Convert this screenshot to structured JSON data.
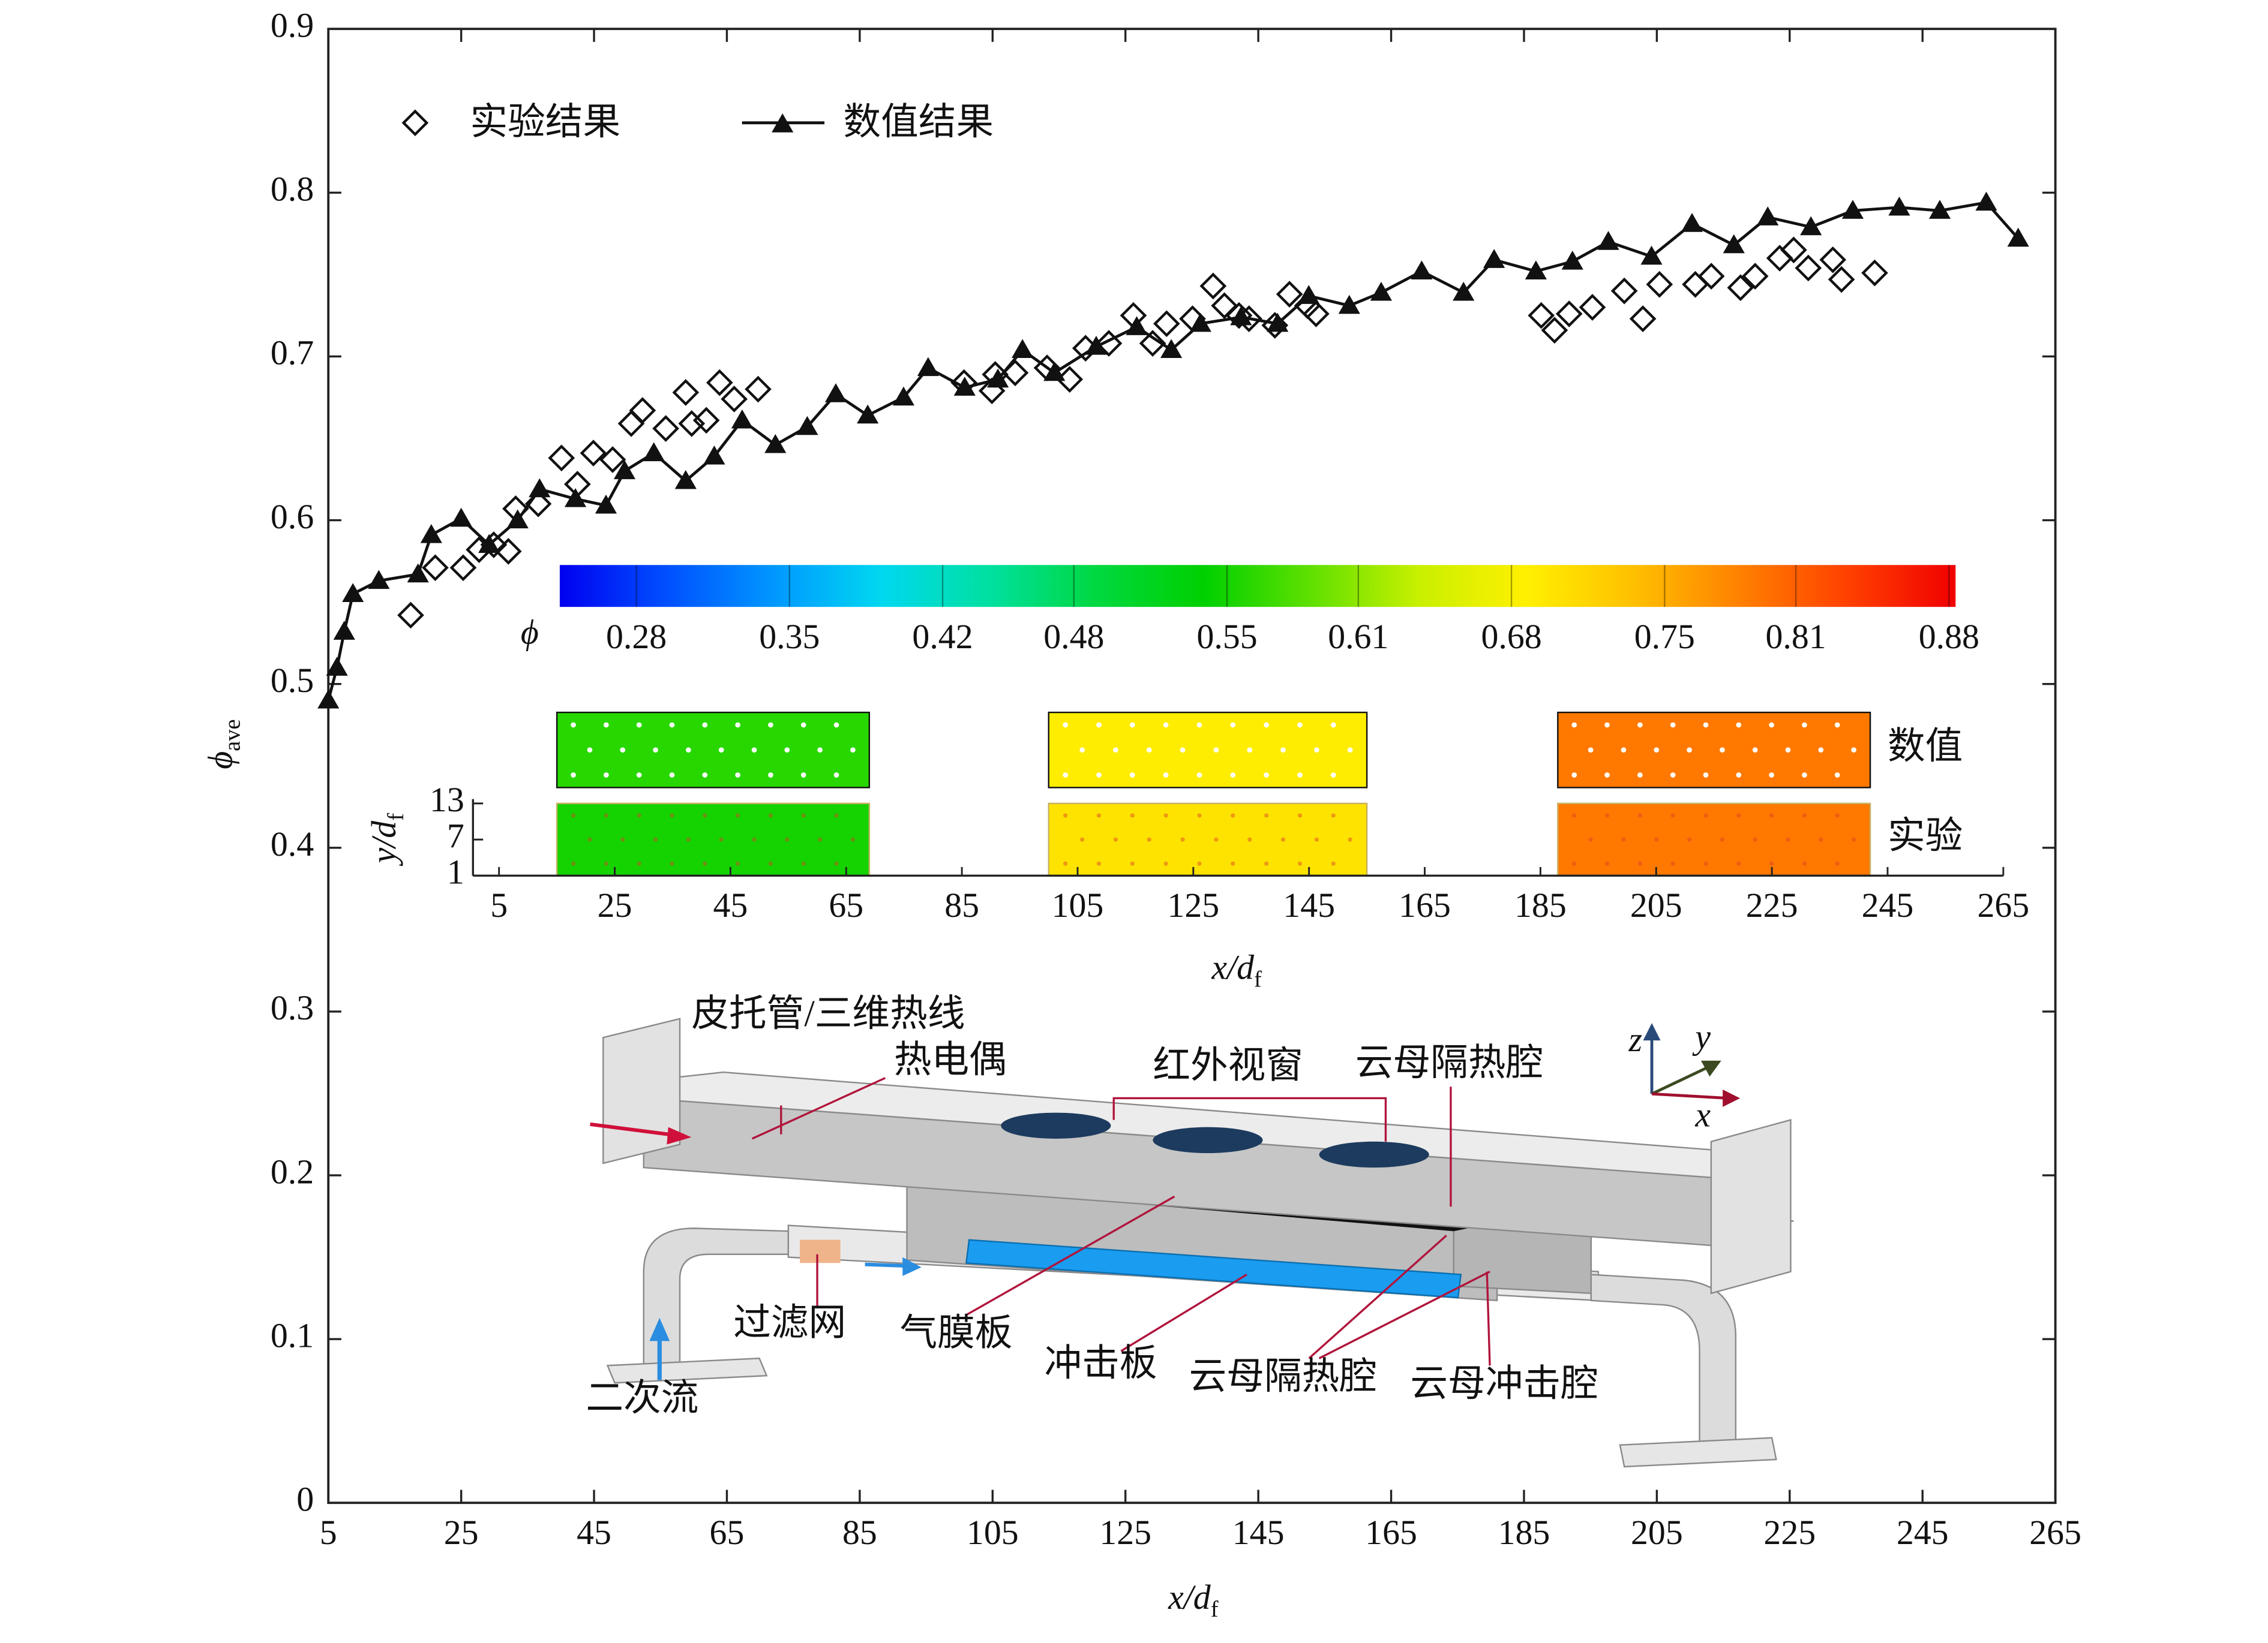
{
  "chart_data": [
    {
      "type": "line",
      "xlabel": {
        "text": "x/d",
        "sub": "f"
      },
      "ylabel": {
        "text": "ϕ",
        "sub": "ave"
      },
      "xlim": [
        5,
        265
      ],
      "ylim": [
        0,
        0.9
      ],
      "xticks": [
        5,
        25,
        45,
        65,
        85,
        105,
        125,
        145,
        165,
        185,
        205,
        225,
        245,
        265
      ],
      "yticks": [
        0,
        0.1,
        0.2,
        0.3,
        0.4,
        0.5,
        0.6,
        0.7,
        0.8,
        0.9
      ],
      "legend": "upper left",
      "series": [
        {
          "name": "实验结果",
          "color": "#111111",
          "marker": "diamond",
          "line": false,
          "x": [
            17.4,
            21.1,
            25.3,
            27.7,
            29.9,
            32.1,
            33.2,
            36.6,
            40.1,
            42.5,
            44.9,
            47.8,
            50.6,
            52.3,
            55.8,
            58.8,
            59.7,
            61.9,
            63.9,
            66.1,
            69.7,
            100.7,
            104.9,
            105.4,
            108.4,
            113.2,
            116.6,
            119.0,
            122.5,
            126.2,
            129.1,
            131.2,
            135.1,
            138.2,
            139.9,
            142.1,
            143.6,
            147.5,
            149.7,
            152.4,
            153.7,
            187.6,
            189.6,
            191.8,
            195.3,
            200.1,
            202.9,
            205.4,
            210.8,
            213.2,
            217.6,
            219.8,
            223.5,
            225.6,
            227.8,
            231.5,
            232.8,
            237.8
          ],
          "values": [
            0.542,
            0.571,
            0.571,
            0.582,
            0.585,
            0.581,
            0.607,
            0.61,
            0.638,
            0.622,
            0.641,
            0.637,
            0.659,
            0.667,
            0.656,
            0.678,
            0.659,
            0.661,
            0.684,
            0.674,
            0.68,
            0.684,
            0.679,
            0.689,
            0.69,
            0.693,
            0.686,
            0.705,
            0.708,
            0.725,
            0.708,
            0.72,
            0.723,
            0.743,
            0.731,
            0.725,
            0.723,
            0.719,
            0.738,
            0.731,
            0.726,
            0.725,
            0.716,
            0.726,
            0.73,
            0.74,
            0.723,
            0.744,
            0.744,
            0.749,
            0.742,
            0.749,
            0.76,
            0.765,
            0.754,
            0.759,
            0.747,
            0.751
          ]
        },
        {
          "name": "数值结果",
          "color": "#111111",
          "marker": "triangle",
          "line": true,
          "x": [
            5,
            6.3,
            7.4,
            8.7,
            12.6,
            18.5,
            20.5,
            25,
            29.2,
            33.5,
            36.8,
            42.2,
            46.8,
            49.6,
            54,
            58.8,
            63.1,
            67.3,
            72.3,
            77.1,
            81.4,
            86.2,
            91.6,
            95.3,
            100.8,
            105.8,
            109.5,
            114.3,
            120.6,
            126.7,
            131.9,
            136.3,
            142.4,
            147.9,
            152.6,
            158.7,
            163.5,
            169.6,
            175.9,
            180.5,
            186.8,
            192.3,
            197.7,
            204.2,
            210.3,
            216.6,
            221.7,
            228.2,
            234.5,
            241.5,
            247.6,
            254.6,
            259.4
          ],
          "values": [
            0.49,
            0.51,
            0.532,
            0.555,
            0.563,
            0.567,
            0.591,
            0.601,
            0.585,
            0.6,
            0.619,
            0.613,
            0.609,
            0.63,
            0.641,
            0.624,
            0.639,
            0.661,
            0.646,
            0.657,
            0.677,
            0.664,
            0.675,
            0.693,
            0.681,
            0.686,
            0.704,
            0.69,
            0.706,
            0.718,
            0.704,
            0.72,
            0.724,
            0.72,
            0.737,
            0.731,
            0.739,
            0.752,
            0.739,
            0.759,
            0.752,
            0.758,
            0.77,
            0.761,
            0.781,
            0.768,
            0.785,
            0.779,
            0.789,
            0.791,
            0.789,
            0.794,
            0.772
          ]
        }
      ]
    },
    {
      "type": "heatmap",
      "xlabel": {
        "text": "x/d",
        "sub": "f"
      },
      "ylabel": {
        "text": "y/d",
        "sub": "f"
      },
      "xlim": [
        5,
        265
      ],
      "ylim": [
        1,
        13
      ],
      "xticks": [
        5,
        25,
        45,
        65,
        85,
        105,
        125,
        145,
        165,
        185,
        205,
        225,
        245,
        265
      ],
      "yticks": [
        1,
        7,
        13
      ],
      "regions": [
        [
          15,
          69
        ],
        [
          100,
          155
        ],
        [
          188,
          242
        ]
      ],
      "series": [
        {
          "name": "数值",
          "values": [
            0.56,
            0.69,
            0.79
          ]
        },
        {
          "name": "实验",
          "values": [
            0.55,
            0.7,
            0.79
          ]
        }
      ],
      "colorbar": {
        "label": "ϕ",
        "lim": [
          0.245,
          0.883
        ],
        "ticks": [
          0.28,
          0.35,
          0.42,
          0.48,
          0.55,
          0.61,
          0.68,
          0.75,
          0.81,
          0.88
        ],
        "colors": [
          "#0000f0",
          "#0050ff",
          "#0098ff",
          "#00d8f0",
          "#00e0a0",
          "#00d840",
          "#00d000",
          "#60e000",
          "#c8f000",
          "#fff000",
          "#ffc000",
          "#ff8000",
          "#ff4000",
          "#f00000"
        ]
      }
    }
  ],
  "diagram": {
    "labels": [
      "皮托管/三维热线",
      "热电偶",
      "红外视窗",
      "云母隔热腔",
      "过滤网",
      "气膜板",
      "冲击板",
      "云母隔热腔",
      "云母冲击腔",
      "二次流"
    ],
    "axes": [
      "z",
      "y",
      "x"
    ]
  }
}
